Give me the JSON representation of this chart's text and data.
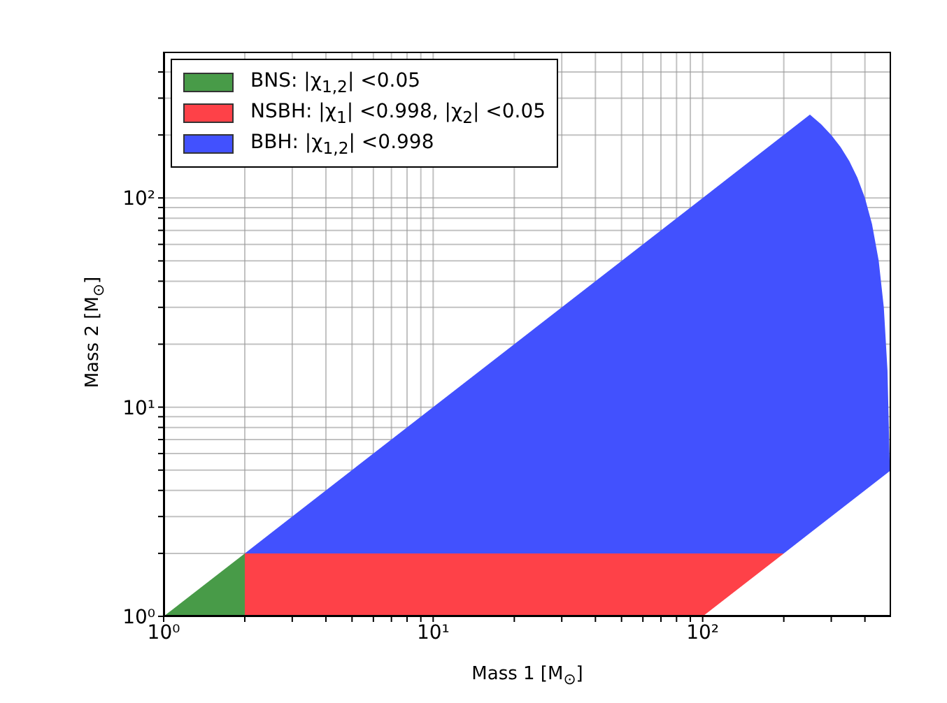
{
  "chart_data": {
    "type": "area",
    "xlabel": "Mass 1 [M$_{⊙}$]",
    "ylabel": "Mass 2 [M$_{⊙}$]",
    "log": "xy",
    "grid": true,
    "legend": "top left",
    "xlim": [
      1,
      500
    ],
    "ylim": [
      1,
      500
    ],
    "xticks": [
      {
        "value": 1,
        "label": "10⁰"
      },
      {
        "value": 2,
        "label": null
      },
      {
        "value": 3,
        "label": null
      },
      {
        "value": 4,
        "label": null
      },
      {
        "value": 5,
        "label": null
      },
      {
        "value": 6,
        "label": null
      },
      {
        "value": 7,
        "label": null
      },
      {
        "value": 8,
        "label": null
      },
      {
        "value": 9,
        "label": null
      },
      {
        "value": 10,
        "label": "10¹"
      },
      {
        "value": 20,
        "label": null
      },
      {
        "value": 30,
        "label": null
      },
      {
        "value": 40,
        "label": null
      },
      {
        "value": 50,
        "label": null
      },
      {
        "value": 60,
        "label": null
      },
      {
        "value": 70,
        "label": null
      },
      {
        "value": 80,
        "label": null
      },
      {
        "value": 90,
        "label": null
      },
      {
        "value": 100,
        "label": "10²"
      },
      {
        "value": 200,
        "label": null
      },
      {
        "value": 300,
        "label": null
      },
      {
        "value": 400,
        "label": null
      }
    ],
    "yticks": [
      {
        "value": 1,
        "label": "10⁰"
      },
      {
        "value": 2,
        "label": null
      },
      {
        "value": 3,
        "label": null
      },
      {
        "value": 4,
        "label": null
      },
      {
        "value": 5,
        "label": null
      },
      {
        "value": 6,
        "label": null
      },
      {
        "value": 7,
        "label": null
      },
      {
        "value": 8,
        "label": null
      },
      {
        "value": 9,
        "label": null
      },
      {
        "value": 10,
        "label": "10¹"
      },
      {
        "value": 20,
        "label": null
      },
      {
        "value": 30,
        "label": null
      },
      {
        "value": 40,
        "label": null
      },
      {
        "value": 50,
        "label": null
      },
      {
        "value": 60,
        "label": null
      },
      {
        "value": 70,
        "label": null
      },
      {
        "value": 80,
        "label": null
      },
      {
        "value": 90,
        "label": null
      },
      {
        "value": 100,
        "label": "10²"
      },
      {
        "value": 200,
        "label": null
      },
      {
        "value": 300,
        "label": null
      },
      {
        "value": 400,
        "label": null
      }
    ],
    "series": [
      {
        "name": "BBH: |χ$_{1,2}$| <0.998",
        "color": "#4251fe",
        "x": [
          2,
          250,
          275,
          300,
          325,
          350,
          375,
          400,
          425,
          450,
          470,
          485,
          495,
          500
        ],
        "values": [
          2,
          250,
          225,
          200,
          175,
          150,
          125,
          100,
          75,
          50,
          30,
          15,
          5,
          5
        ]
      },
      {
        "name": "NSBH: |χ$_{1}$| <0.998, |χ$_{2}$| <0.05",
        "color": "#fe4148",
        "x": [
          2,
          200
        ],
        "values": [
          2,
          2
        ]
      },
      {
        "name": "BNS: |χ$_{1,2}$| <0.05",
        "color": "#489b48",
        "x": [
          1,
          2
        ],
        "values": [
          1,
          2
        ]
      },
      {
        "color": "#ffffff",
        "x": [
          100,
          200,
          500
        ],
        "values": [
          1,
          2,
          5
        ]
      }
    ]
  }
}
